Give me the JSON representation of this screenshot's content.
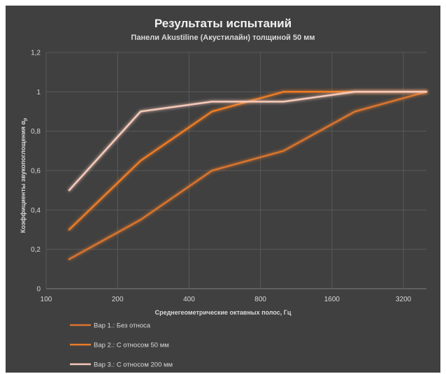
{
  "chart_data": {
    "type": "line",
    "title": "Результаты испытаний",
    "subtitle": "Панели Akustiline (Акустилайн) толщиной 50 мм",
    "xlabel": "Среднегеометрические октавных полос, Гц",
    "ylabel_main": "Коэффициенты звукопоглощения α",
    "ylabel_sub": "р",
    "x_scale": "log2",
    "x_tick_labels": [
      "100",
      "200",
      "400",
      "800",
      "1600",
      "3200"
    ],
    "x_ticks": [
      100,
      200,
      400,
      800,
      1600,
      3200
    ],
    "xlim": [
      100,
      4000
    ],
    "ylim": [
      0,
      1.2
    ],
    "y_ticks": [
      0,
      0.2,
      0.4,
      0.6,
      0.8,
      1,
      1.2
    ],
    "y_tick_labels": [
      "0",
      "0,2",
      "0,4",
      "0,6",
      "0,8",
      "1",
      "1,2"
    ],
    "grid": true,
    "legend_position": "bottom-left",
    "x": [
      125,
      250,
      500,
      1000,
      2000,
      4000
    ],
    "series": [
      {
        "name": "Вар 1.: Без относа",
        "values": [
          0.15,
          0.35,
          0.6,
          0.7,
          0.9,
          1.0
        ],
        "color": "#d9742e"
      },
      {
        "name": "Вар 2.: С относом 50 мм",
        "values": [
          0.3,
          0.65,
          0.9,
          1.0,
          1.0,
          1.0
        ],
        "color": "#ec7c28"
      },
      {
        "name": "Вар 3.: С относом 200 мм",
        "values": [
          0.5,
          0.9,
          0.95,
          0.95,
          1.0,
          1.0
        ],
        "color": "#f6c9b9"
      }
    ],
    "colors": {
      "background": "#404040",
      "gridline": "#595959",
      "text": "#d9d9d9"
    }
  }
}
